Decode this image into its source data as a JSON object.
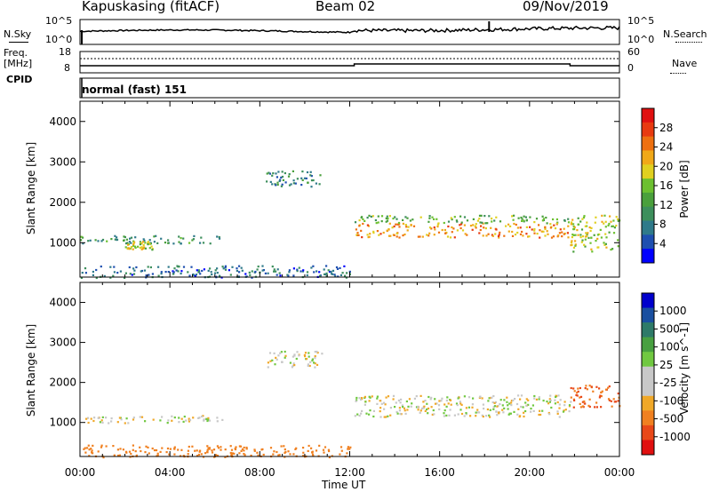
{
  "header": {
    "station": "Kapuskasing (fitACF)",
    "beam": "Beam 02",
    "date": "09/Nov/2019"
  },
  "top_panels": {
    "nsky_label": "N.Sky",
    "nsky_ticks": [
      "10^5",
      "10^0"
    ],
    "nsearch_label": "N.Search",
    "nsearch_ticks": [
      "10^5",
      "10^0"
    ],
    "freq_label": "Freq.",
    "freq_unit": "[MHz]",
    "freq_ticks": [
      "18",
      "8"
    ],
    "nave_label": "Nave",
    "nave_ticks": [
      "60",
      "0"
    ],
    "cpid_label": "CPID",
    "cpid_value": "normal (fast) 151"
  },
  "colors": {
    "power_scale": [
      "#0000ff",
      "#1e4fb0",
      "#2f7a8a",
      "#3d8f5c",
      "#4aa03c",
      "#6cc030",
      "#e0d020",
      "#f0a818",
      "#ee7010",
      "#e83a10",
      "#e01010"
    ],
    "velocity_scale": [
      "#0000cc",
      "#1a4fa0",
      "#2e7a68",
      "#48a040",
      "#70c840",
      "#c8c8c8",
      "#c8c8c8",
      "#f0a828",
      "#f08020",
      "#e84818",
      "#e01010"
    ]
  },
  "chart_data": [
    {
      "type": "heatmap",
      "panel": "Power",
      "ylabel": "Slant Range [km]",
      "ylim": [
        150,
        4500
      ],
      "yticks": [
        "4000",
        "3000",
        "2000",
        "1000"
      ],
      "xlim": [
        "00:00",
        "24:00"
      ],
      "colorbar_label": "Power [dB]",
      "colorbar_ticks": [
        "28",
        "24",
        "20",
        "16",
        "12",
        "8",
        "4"
      ],
      "colorbar_range": [
        0,
        32
      ],
      "regions": [
        {
          "t0": 0.0,
          "t1": 6.3,
          "r0": 1000,
          "r1": 1200,
          "level": 10
        },
        {
          "t0": 2.0,
          "t1": 3.2,
          "r0": 850,
          "r1": 1050,
          "level": 18
        },
        {
          "t0": 8.2,
          "t1": 10.8,
          "r0": 2400,
          "r1": 2800,
          "level": 8
        },
        {
          "t0": 12.2,
          "t1": 21.8,
          "r0": 1150,
          "r1": 1500,
          "level": 24
        },
        {
          "t0": 12.2,
          "t1": 21.8,
          "r0": 1500,
          "r1": 1700,
          "level": 14
        },
        {
          "t0": 21.8,
          "t1": 24.0,
          "r0": 800,
          "r1": 1700,
          "level": 18
        },
        {
          "t0": 0.0,
          "t1": 12.0,
          "r0": 150,
          "r1": 450,
          "level": 6
        }
      ]
    },
    {
      "type": "heatmap",
      "panel": "Velocity",
      "ylabel": "Slant Range [km]",
      "ylim": [
        150,
        4500
      ],
      "yticks": [
        "4000",
        "3000",
        "2000",
        "1000"
      ],
      "xlabel": "Time UT",
      "xticks": [
        "00:00",
        "04:00",
        "08:00",
        "12:00",
        "16:00",
        "20:00",
        "00:00"
      ],
      "colorbar_label": "Velocity [m s^-1]",
      "colorbar_ticks": [
        "1000",
        "500",
        "100",
        "25",
        "-25",
        "-100",
        "-500",
        "-1000"
      ],
      "regions": [
        {
          "t0": 0.0,
          "t1": 6.3,
          "r0": 1000,
          "r1": 1200,
          "velocity": 0
        },
        {
          "t0": 8.2,
          "t1": 10.8,
          "r0": 2400,
          "r1": 2800,
          "velocity": 0
        },
        {
          "t0": 12.2,
          "t1": 21.8,
          "r0": 1150,
          "r1": 1700,
          "velocity": 0
        },
        {
          "t0": 21.8,
          "t1": 24.0,
          "r0": 1400,
          "r1": 1950,
          "velocity": -300
        },
        {
          "t0": 0.0,
          "t1": 12.0,
          "r0": 150,
          "r1": 450,
          "velocity": -150
        }
      ]
    }
  ]
}
